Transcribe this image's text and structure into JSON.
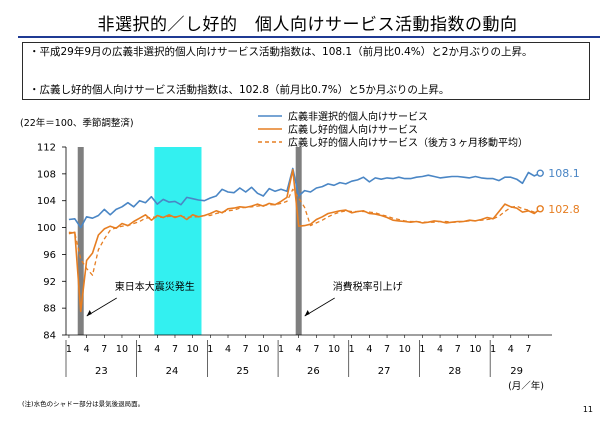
{
  "page": {
    "title": "非選択的／し好的　個人向けサービス活動指数の動向",
    "bullets": [
      "・平成29年9月の広義非選択的個人向けサービス活動指数は、108.1（前月比0.4%）と2か月ぶりの上昇。",
      "・広義し好的個人向けサービス活動指数は、102.8（前月比0.7%）と5か月ぶりの上昇。"
    ],
    "note": "(注)水色のシャドー部分は景気後退局面。",
    "page_number": "11"
  },
  "chart_data": {
    "type": "line",
    "subtitle": "(22年＝100、季節調整済)",
    "x_unit_label": "(月／年)",
    "ylim": [
      84,
      112
    ],
    "y_ticks": [
      84,
      88,
      92,
      96,
      100,
      104,
      108,
      112
    ],
    "x_start": "2011-01",
    "x_end": "2017-09",
    "month_tick_labels": [
      "1",
      "4",
      "7",
      "10"
    ],
    "years": [
      {
        "label": "23",
        "start": "2011-01"
      },
      {
        "label": "24",
        "start": "2012-01"
      },
      {
        "label": "25",
        "start": "2013-01"
      },
      {
        "label": "26",
        "start": "2014-01"
      },
      {
        "label": "27",
        "start": "2015-01"
      },
      {
        "label": "28",
        "start": "2016-01"
      },
      {
        "label": "29",
        "start": "2017-01"
      }
    ],
    "recession_shade": {
      "start": "2012-04",
      "end": "2012-11",
      "color": "#33f0f0"
    },
    "event_bars": [
      {
        "date": "2011-03",
        "label": "東日本大震災発生",
        "color": "#7f7f7f"
      },
      {
        "date": "2014-04",
        "label": "消費税率引上げ",
        "color": "#7f7f7f"
      }
    ],
    "end_labels": {
      "nonselective": "108.1",
      "hobby": "102.8"
    },
    "series": [
      {
        "name": "広義非選択的個人向けサービス",
        "color": "#4a86c5",
        "style": "solid",
        "values": [
          101.2,
          101.3,
          100.0,
          101.6,
          101.4,
          101.8,
          102.7,
          101.9,
          102.7,
          103.1,
          103.7,
          103.1,
          104.0,
          103.7,
          104.6,
          103.5,
          104.2,
          103.8,
          103.9,
          103.4,
          104.5,
          104.3,
          104.1,
          104.0,
          104.4,
          104.7,
          105.7,
          105.3,
          105.2,
          105.9,
          105.3,
          106.0,
          105.1,
          104.7,
          105.8,
          105.4,
          105.7,
          105.4,
          108.8,
          104.7,
          105.5,
          105.3,
          105.9,
          106.1,
          106.5,
          106.3,
          106.7,
          106.5,
          106.9,
          107.1,
          107.5,
          106.8,
          107.4,
          107.2,
          107.4,
          107.3,
          107.5,
          107.3,
          107.3,
          107.5,
          107.6,
          107.8,
          107.6,
          107.4,
          107.5,
          107.6,
          107.6,
          107.5,
          107.4,
          107.6,
          107.4,
          107.3,
          107.3,
          107.0,
          107.5,
          107.5,
          107.2,
          106.6,
          108.2,
          107.7,
          108.1
        ]
      },
      {
        "name": "広義し好的個人向けサービス",
        "color": "#e67e22",
        "style": "solid",
        "values": [
          99.1,
          99.3,
          87.5,
          95.1,
          96.2,
          98.9,
          99.8,
          100.2,
          99.9,
          100.6,
          100.3,
          100.9,
          101.4,
          101.9,
          101.1,
          101.8,
          101.5,
          101.9,
          101.5,
          101.8,
          101.2,
          101.9,
          101.6,
          101.8,
          102.1,
          102.5,
          102.2,
          102.8,
          102.9,
          103.1,
          103.0,
          103.2,
          103.5,
          103.2,
          103.6,
          103.4,
          103.9,
          104.5,
          108.6,
          100.2,
          100.3,
          100.5,
          101.2,
          101.6,
          102.1,
          102.3,
          102.5,
          102.6,
          102.2,
          102.4,
          102.5,
          102.1,
          102.0,
          101.8,
          101.5,
          101.1,
          101.0,
          100.9,
          100.8,
          100.9,
          100.7,
          100.8,
          101.0,
          100.9,
          100.7,
          100.8,
          100.9,
          100.9,
          101.1,
          101.0,
          101.2,
          101.5,
          101.3,
          102.4,
          103.5,
          103.1,
          102.9,
          102.3,
          102.5,
          102.1,
          102.8
        ]
      },
      {
        "name": "広義し好的個人向けサービス（後方３ヶ月移動平均）",
        "color": "#e67e22",
        "style": "dashed",
        "values": [
          99.3,
          99.2,
          95.3,
          93.9,
          92.9,
          96.7,
          98.3,
          99.6,
          100.0,
          100.2,
          100.3,
          100.6,
          100.9,
          101.4,
          101.5,
          101.6,
          101.5,
          101.7,
          101.6,
          101.7,
          101.5,
          101.6,
          101.6,
          101.8,
          101.8,
          102.1,
          102.3,
          102.5,
          102.6,
          102.9,
          103.0,
          103.1,
          103.2,
          103.3,
          103.4,
          103.4,
          103.6,
          103.9,
          105.7,
          104.4,
          103.0,
          100.3,
          100.7,
          101.1,
          101.6,
          102.0,
          102.3,
          102.5,
          102.4,
          102.4,
          102.4,
          102.3,
          102.2,
          101.9,
          101.7,
          101.4,
          101.2,
          101.0,
          100.9,
          100.9,
          100.8,
          100.8,
          100.8,
          100.9,
          100.9,
          100.8,
          100.8,
          100.9,
          101.0,
          101.0,
          101.1,
          101.2,
          101.3,
          101.7,
          102.4,
          103.0,
          103.2,
          102.8,
          102.6,
          102.3,
          102.5
        ]
      }
    ]
  }
}
